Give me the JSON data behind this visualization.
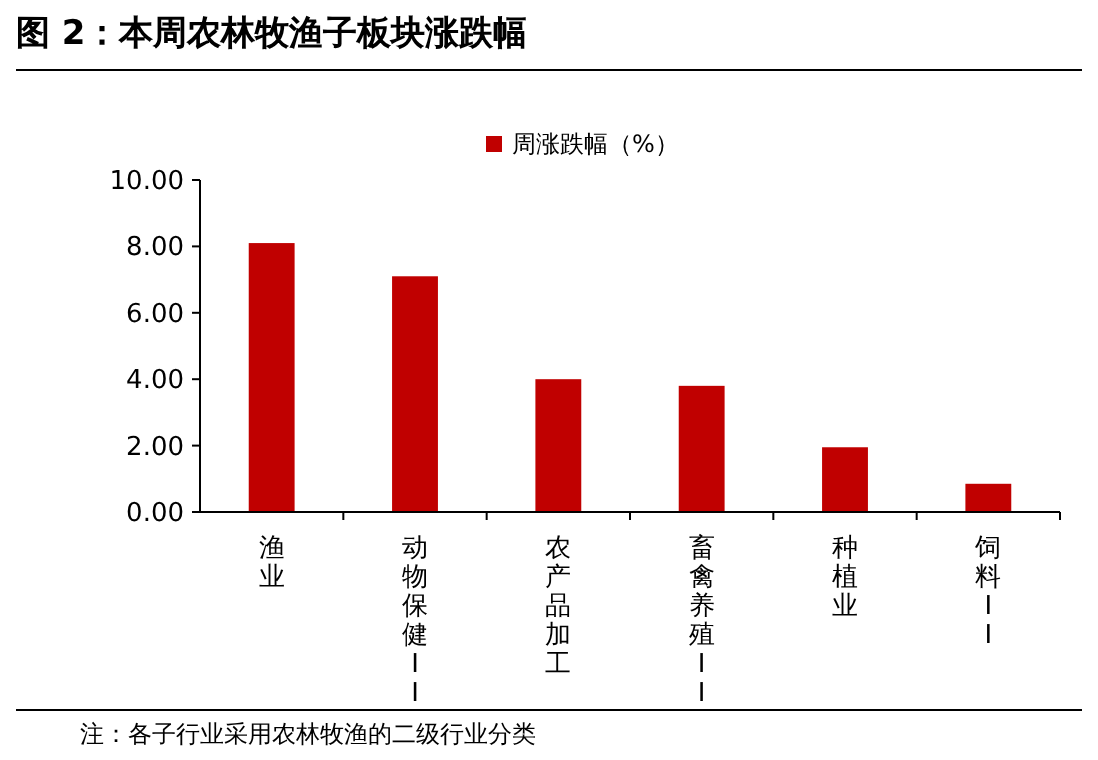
{
  "chart_data": {
    "type": "bar",
    "title": "图 2：本周农林牧渔子板块涨跌幅",
    "categories": [
      "渔业",
      "动物保健II",
      "农产品加工",
      "畜禽养殖II",
      "种植业",
      "饲料II"
    ],
    "series": [
      {
        "name": "周涨跌幅（%）",
        "color": "#c00000",
        "values": [
          8.1,
          7.1,
          4.0,
          3.8,
          1.95,
          0.85
        ]
      }
    ],
    "ylim": [
      0,
      10
    ],
    "yticks": [
      {
        "value": 0,
        "label": "0.00"
      },
      {
        "value": 2,
        "label": "2.00"
      },
      {
        "value": 4,
        "label": "4.00"
      },
      {
        "value": 6,
        "label": "6.00"
      },
      {
        "value": 8,
        "label": "8.00"
      },
      {
        "value": 10,
        "label": "10.00"
      }
    ],
    "legend": "top",
    "grid": false,
    "annotations": [
      "注：各子行业采用农林牧渔的二级行业分类"
    ]
  }
}
